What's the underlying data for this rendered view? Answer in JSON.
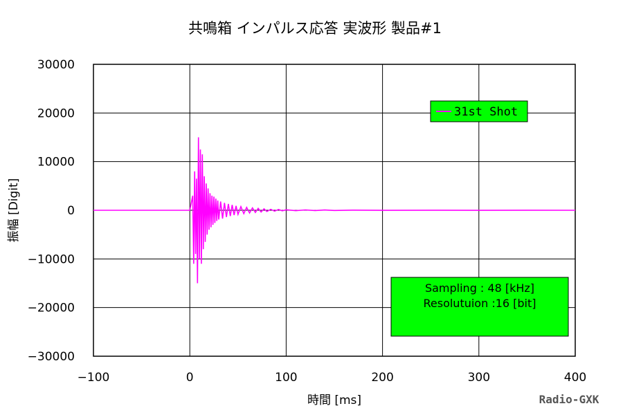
{
  "chart_data": {
    "type": "line",
    "title": "共鳴箱 インパルス応答 実波形 製品#1",
    "xlabel": "時間 [ms]",
    "ylabel": "振幅 [Digit]",
    "xlim": [
      -100,
      400
    ],
    "ylim": [
      -30000,
      30000
    ],
    "x_ticks": [
      -100,
      0,
      100,
      200,
      300,
      400
    ],
    "y_ticks": [
      30000,
      20000,
      10000,
      0,
      -10000,
      -20000,
      -30000
    ],
    "x_tick_labels": [
      "−100",
      "0",
      "100",
      "200",
      "300",
      "400"
    ],
    "y_tick_labels": [
      "30000",
      "20000",
      "10000",
      "0",
      "−10000",
      "−20000",
      "−30000"
    ],
    "grid": true,
    "legend_position": "top-right",
    "series": [
      {
        "name": "31st Shot",
        "color": "#ff00ff",
        "x": [
          -100,
          0,
          3,
          4,
          5,
          6,
          7,
          8,
          9,
          10,
          11,
          12,
          13,
          14,
          15,
          16,
          17,
          18,
          19,
          20,
          21,
          22,
          23,
          24,
          25,
          26,
          27,
          28,
          29,
          30,
          32,
          34,
          36,
          38,
          40,
          42,
          44,
          46,
          48,
          50,
          53,
          56,
          59,
          62,
          65,
          68,
          71,
          74,
          77,
          80,
          84,
          88,
          92,
          96,
          100,
          110,
          120,
          130,
          140,
          150,
          170,
          200,
          250,
          300,
          350,
          400
        ],
        "values": [
          0,
          0,
          3000,
          -11000,
          8000,
          -9000,
          6500,
          -15000,
          15000,
          -10000,
          12500,
          -11000,
          11500,
          -8000,
          7000,
          -6500,
          5500,
          -5000,
          4500,
          -4000,
          3500,
          -3500,
          3000,
          -3000,
          2800,
          -2600,
          2400,
          -2200,
          2000,
          -1900,
          1800,
          -1700,
          1500,
          -1400,
          1300,
          -1200,
          1100,
          -1000,
          900,
          -850,
          750,
          -700,
          600,
          -550,
          500,
          -450,
          400,
          -350,
          300,
          -250,
          200,
          -180,
          150,
          -120,
          100,
          -80,
          70,
          -60,
          50,
          -40,
          30,
          -20,
          15,
          -10,
          8,
          0
        ]
      }
    ],
    "annotation": {
      "line1": "Sampling  : 48 [kHz]",
      "line2": "Resolutuion :16 [bit]"
    }
  },
  "watermark": "Radio-GXK",
  "colors": {
    "line": "#ff00ff",
    "legend_bg": "#00ff00",
    "info_bg": "#00ff00"
  }
}
